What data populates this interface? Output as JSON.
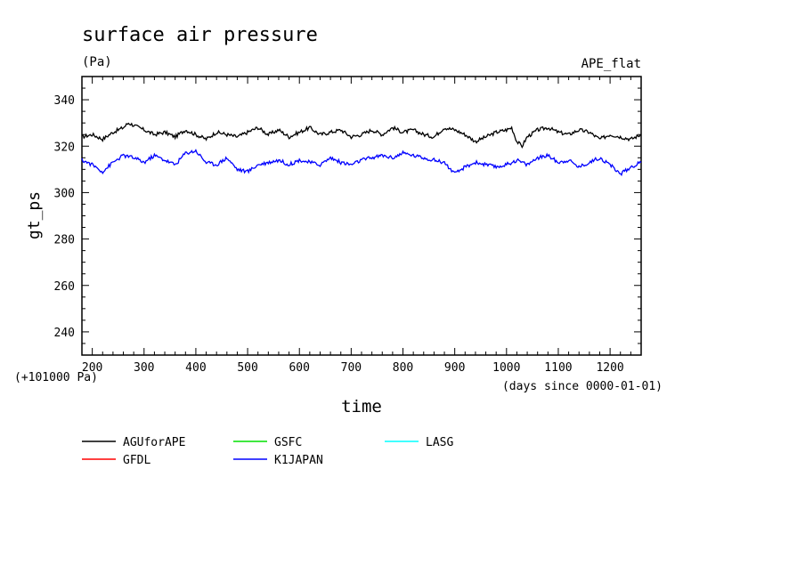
{
  "chart_data": {
    "type": "line",
    "title": "surface air pressure",
    "units": "(Pa)",
    "experiment": "APE_flat",
    "ylabel": "gt_ps",
    "xlabel": "time",
    "y_offset_note": "(+101000 Pa)",
    "x_units_note": "(days since 0000-01-01)",
    "xlim": [
      180,
      1260
    ],
    "ylim": [
      230,
      350
    ],
    "x_ticks": [
      "200",
      "300",
      "400",
      "500",
      "600",
      "700",
      "800",
      "900",
      "1000",
      "1100",
      "1200"
    ],
    "y_ticks": [
      "240",
      "260",
      "280",
      "300",
      "320",
      "340"
    ],
    "grid": false,
    "legend_position": "bottom",
    "series": [
      {
        "name": "AGUforAPE",
        "color": "#000000",
        "x": [
          180,
          200,
          220,
          240,
          260,
          270,
          280,
          300,
          320,
          340,
          360,
          380,
          400,
          420,
          440,
          460,
          480,
          500,
          520,
          540,
          560,
          580,
          600,
          620,
          640,
          660,
          680,
          700,
          720,
          740,
          760,
          780,
          800,
          820,
          840,
          860,
          880,
          900,
          920,
          940,
          960,
          980,
          1000,
          1010,
          1020,
          1030,
          1040,
          1060,
          1080,
          1100,
          1120,
          1140,
          1160,
          1180,
          1200,
          1220,
          1240,
          1260
        ],
        "values": [
          324,
          325,
          323,
          326,
          328,
          330,
          329,
          327,
          325,
          326,
          324,
          327,
          325,
          323,
          326,
          325,
          324,
          326,
          328,
          325,
          327,
          324,
          326,
          328,
          325,
          326,
          327,
          324,
          325,
          327,
          325,
          328,
          326,
          327,
          325,
          324,
          328,
          327,
          325,
          322,
          324,
          326,
          327,
          328,
          322,
          320,
          324,
          327,
          328,
          326,
          325,
          327,
          326,
          323,
          325,
          324,
          323,
          325
        ]
      },
      {
        "name": "GFDL",
        "color": "#ff0000",
        "x": [],
        "values": []
      },
      {
        "name": "GSFC",
        "color": "#00e000",
        "x": [],
        "values": []
      },
      {
        "name": "K1JAPAN",
        "color": "#0000ff",
        "x": [
          180,
          200,
          220,
          240,
          260,
          280,
          300,
          320,
          340,
          360,
          380,
          400,
          420,
          440,
          460,
          480,
          500,
          520,
          540,
          560,
          580,
          600,
          620,
          640,
          660,
          680,
          700,
          720,
          740,
          760,
          780,
          800,
          820,
          840,
          860,
          880,
          900,
          920,
          940,
          960,
          980,
          1000,
          1020,
          1040,
          1060,
          1080,
          1100,
          1120,
          1140,
          1160,
          1180,
          1200,
          1220,
          1240,
          1260
        ],
        "values": [
          314,
          312,
          309,
          313,
          316,
          315,
          313,
          316,
          314,
          312,
          317,
          318,
          313,
          312,
          315,
          310,
          309,
          312,
          313,
          314,
          312,
          314,
          313,
          312,
          315,
          313,
          312,
          314,
          315,
          316,
          315,
          317,
          316,
          315,
          314,
          313,
          308,
          311,
          313,
          312,
          311,
          312,
          314,
          312,
          315,
          316,
          313,
          314,
          311,
          313,
          315,
          312,
          308,
          311,
          313
        ]
      },
      {
        "name": "LASG",
        "color": "#00ffff",
        "x": [],
        "values": []
      }
    ]
  }
}
